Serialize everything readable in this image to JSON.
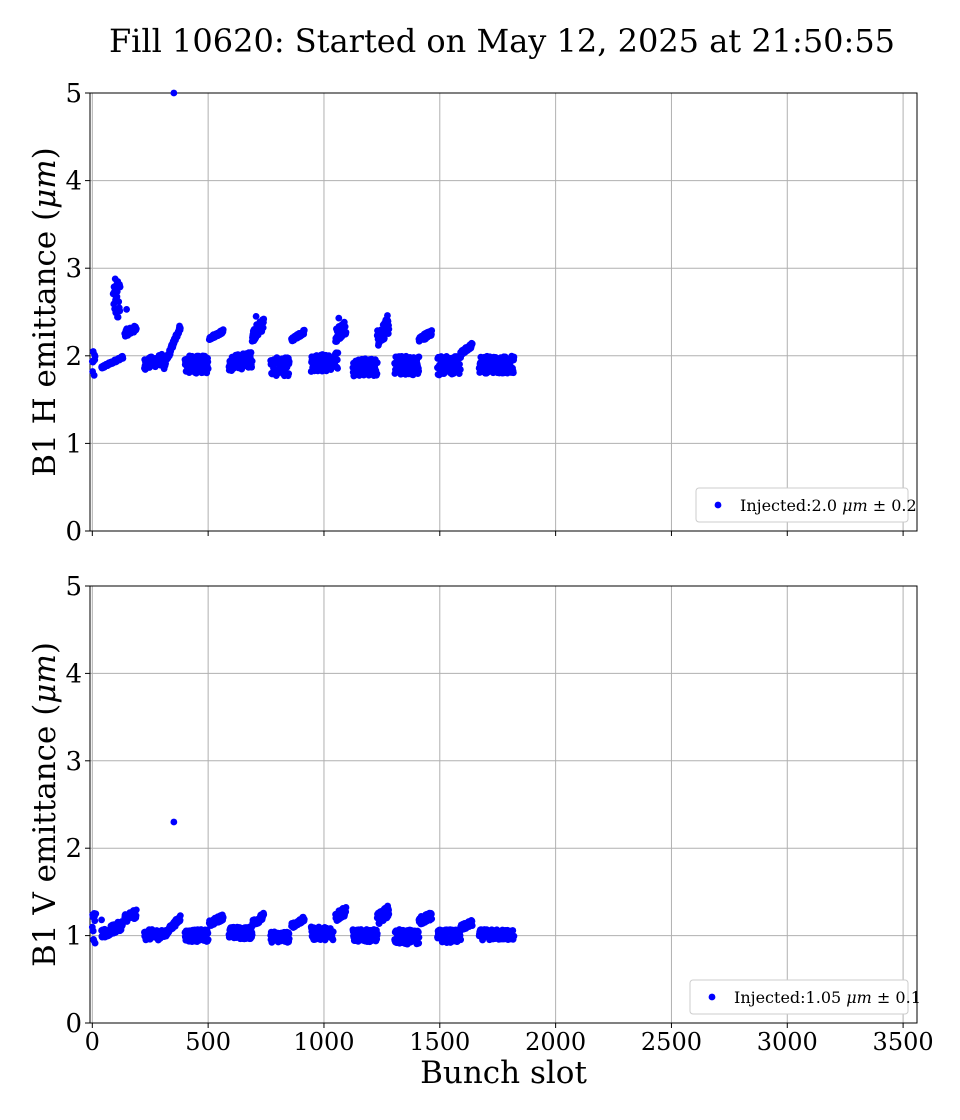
{
  "title": "Fill 10620: Started on May 12, 2025 at 21:50:55",
  "chart_data": [
    {
      "type": "scatter",
      "ylabel_text": "B1 H emittance (",
      "ylabel_math": "μm",
      "ylabel_close": ")",
      "xlabel": "",
      "xlim": [
        -10,
        3560
      ],
      "ylim": [
        0,
        5
      ],
      "xticks": [
        "0",
        "500",
        "1000",
        "1500",
        "2000",
        "2500",
        "3000",
        "3500"
      ],
      "yticks": [
        "0",
        "1",
        "2",
        "3",
        "4",
        "5"
      ],
      "grid": true,
      "legend_position": "lower-right",
      "legend_prefix": "Injected:2.0 ",
      "legend_math": "μm",
      "legend_suffix": " ± 0.2",
      "color": "#0000ff",
      "trains": [
        {
          "start": 0,
          "end": 12,
          "low": 1.72,
          "high": 2.05,
          "rise": 0.0
        },
        {
          "start": 40,
          "end": 132,
          "low": 1.85,
          "high": 2.0,
          "rise": 0.12
        },
        {
          "start": 90,
          "end": 120,
          "low": 2.4,
          "high": 2.88,
          "rise": 0.0
        },
        {
          "start": 140,
          "end": 190,
          "low": 2.22,
          "high": 2.35,
          "rise": 0.05
        },
        {
          "start": 225,
          "end": 300,
          "low": 1.84,
          "high": 2.02,
          "rise": 0.05
        },
        {
          "start": 310,
          "end": 380,
          "low": 1.85,
          "high": 2.37,
          "rise": 0.45
        },
        {
          "start": 400,
          "end": 500,
          "low": 1.8,
          "high": 2.0,
          "rise": 0.0
        },
        {
          "start": 505,
          "end": 565,
          "low": 2.18,
          "high": 2.3,
          "rise": 0.08
        },
        {
          "start": 590,
          "end": 690,
          "low": 1.82,
          "high": 2.05,
          "rise": 0.05
        },
        {
          "start": 690,
          "end": 740,
          "low": 2.15,
          "high": 2.45,
          "rise": 0.15
        },
        {
          "start": 770,
          "end": 850,
          "low": 1.77,
          "high": 1.98,
          "rise": 0.0
        },
        {
          "start": 860,
          "end": 915,
          "low": 2.15,
          "high": 2.3,
          "rise": 0.1
        },
        {
          "start": 945,
          "end": 1060,
          "low": 1.8,
          "high": 2.05,
          "rise": 0.05
        },
        {
          "start": 1050,
          "end": 1095,
          "low": 2.15,
          "high": 2.42,
          "rise": 0.1
        },
        {
          "start": 1125,
          "end": 1230,
          "low": 1.77,
          "high": 1.97,
          "rise": 0.0
        },
        {
          "start": 1230,
          "end": 1280,
          "low": 2.1,
          "high": 2.45,
          "rise": 0.15
        },
        {
          "start": 1305,
          "end": 1410,
          "low": 1.78,
          "high": 2.0,
          "rise": 0.0
        },
        {
          "start": 1410,
          "end": 1465,
          "low": 2.15,
          "high": 2.3,
          "rise": 0.08
        },
        {
          "start": 1490,
          "end": 1590,
          "low": 1.78,
          "high": 2.0,
          "rise": 0.0
        },
        {
          "start": 1590,
          "end": 1640,
          "low": 2.0,
          "high": 2.15,
          "rise": 0.1
        },
        {
          "start": 1670,
          "end": 1820,
          "low": 1.8,
          "high": 2.0,
          "rise": 0.0
        }
      ],
      "points": [
        [
          352,
          5.0
        ],
        [
          148,
          2.53
        ],
        [
          707,
          2.45
        ],
        [
          1274,
          2.46
        ],
        [
          1064,
          2.43
        ]
      ]
    },
    {
      "type": "scatter",
      "ylabel_text": "B1 V emittance (",
      "ylabel_math": "μm",
      "ylabel_close": ")",
      "xlabel": "Bunch slot",
      "xlim": [
        -10,
        3560
      ],
      "ylim": [
        0,
        5
      ],
      "xticks": [
        "0",
        "500",
        "1000",
        "1500",
        "2000",
        "2500",
        "3000",
        "3500"
      ],
      "yticks": [
        "0",
        "1",
        "2",
        "3",
        "4",
        "5"
      ],
      "grid": true,
      "legend_position": "lower-right",
      "legend_prefix": "Injected:1.05 ",
      "legend_math": "μm",
      "legend_suffix": " ± 0.1",
      "color": "#0000ff",
      "trains": [
        {
          "start": 0,
          "end": 12,
          "low": 0.88,
          "high": 1.28,
          "rise": 0.0
        },
        {
          "start": 40,
          "end": 130,
          "low": 0.95,
          "high": 1.18,
          "rise": 0.12
        },
        {
          "start": 140,
          "end": 190,
          "low": 1.15,
          "high": 1.3,
          "rise": 0.05
        },
        {
          "start": 225,
          "end": 300,
          "low": 0.95,
          "high": 1.07,
          "rise": 0.0
        },
        {
          "start": 310,
          "end": 380,
          "low": 0.97,
          "high": 1.24,
          "rise": 0.2
        },
        {
          "start": 400,
          "end": 500,
          "low": 0.93,
          "high": 1.07,
          "rise": 0.0
        },
        {
          "start": 505,
          "end": 565,
          "low": 1.1,
          "high": 1.25,
          "rise": 0.08
        },
        {
          "start": 590,
          "end": 690,
          "low": 0.96,
          "high": 1.1,
          "rise": 0.0
        },
        {
          "start": 690,
          "end": 740,
          "low": 1.1,
          "high": 1.26,
          "rise": 0.08
        },
        {
          "start": 770,
          "end": 850,
          "low": 0.92,
          "high": 1.05,
          "rise": 0.0
        },
        {
          "start": 860,
          "end": 915,
          "low": 1.08,
          "high": 1.22,
          "rise": 0.08
        },
        {
          "start": 945,
          "end": 1040,
          "low": 0.95,
          "high": 1.1,
          "rise": 0.0
        },
        {
          "start": 1050,
          "end": 1095,
          "low": 1.15,
          "high": 1.35,
          "rise": 0.08
        },
        {
          "start": 1125,
          "end": 1230,
          "low": 0.93,
          "high": 1.07,
          "rise": 0.0
        },
        {
          "start": 1230,
          "end": 1280,
          "low": 1.12,
          "high": 1.35,
          "rise": 0.1
        },
        {
          "start": 1305,
          "end": 1410,
          "low": 0.9,
          "high": 1.07,
          "rise": 0.0
        },
        {
          "start": 1410,
          "end": 1465,
          "low": 1.12,
          "high": 1.27,
          "rise": 0.06
        },
        {
          "start": 1490,
          "end": 1590,
          "low": 0.92,
          "high": 1.07,
          "rise": 0.0
        },
        {
          "start": 1590,
          "end": 1640,
          "low": 1.05,
          "high": 1.18,
          "rise": 0.06
        },
        {
          "start": 1670,
          "end": 1820,
          "low": 0.95,
          "high": 1.07,
          "rise": 0.0
        }
      ],
      "points": [
        [
          352,
          2.3
        ],
        [
          40,
          1.18
        ],
        [
          15,
          1.25
        ]
      ]
    }
  ]
}
